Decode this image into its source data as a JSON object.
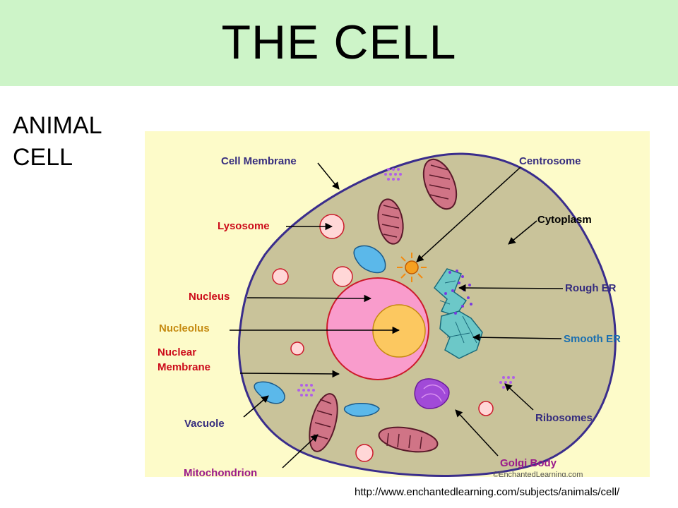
{
  "page": {
    "title": "THE CELL",
    "side_label_line1": "ANIMAL",
    "side_label_line2": "CELL",
    "source_url": "http://www.enchantedlearning.com/subjects/animals/cell/"
  },
  "diagram": {
    "copyright": "©EnchantedLearning.com",
    "labels": {
      "cell_membrane": "Cell Membrane",
      "centrosome": "Centrosome",
      "lysosome": "Lysosome",
      "cytoplasm": "Cytoplasm",
      "nucleus": "Nucleus",
      "rough_er": "Rough ER",
      "nucleolus": "Nucleolus",
      "smooth_er": "Smooth ER",
      "nuclear_line1": "Nuclear",
      "nuclear_line2": "Membrane",
      "vacuole": "Vacuole",
      "ribosomes": "Ribosomes",
      "mitochondrion": "Mitochondrion",
      "golgi_body": "Golgi Body"
    },
    "colors": {
      "background": "#fdfbc9",
      "cytoplasm": "#c9c39a",
      "membrane": "#3a2d8c",
      "nucleus": "#f99ccc",
      "nucleolus": "#fcc860",
      "mitochondria": "#d07486",
      "vacuole": "#5bb8ea",
      "lysosome": "#ffd7d7",
      "er": "#6cc8c8",
      "golgi": "#a14ad8",
      "label_navy": "#352c7e",
      "label_red": "#cc0b1a",
      "label_gold": "#c58a10",
      "label_blue": "#1a6fb0",
      "label_purple": "#9a1a8a"
    }
  }
}
